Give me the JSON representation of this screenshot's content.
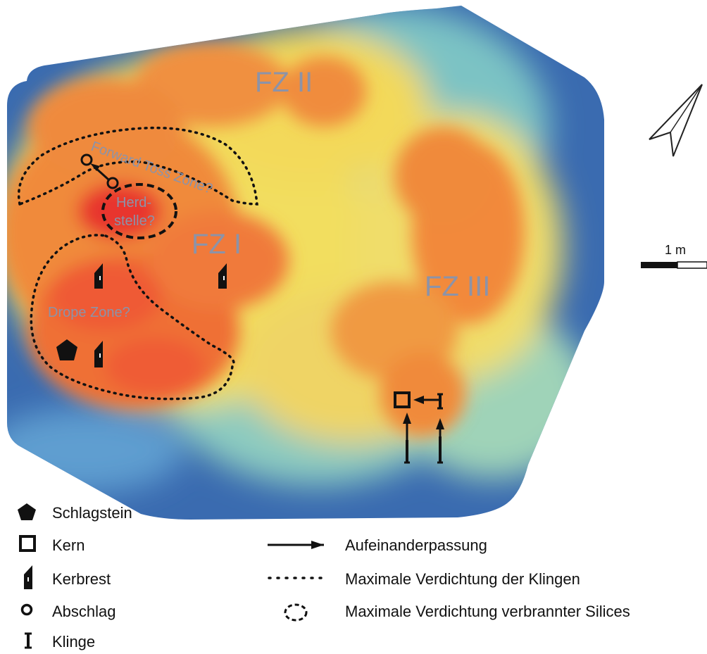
{
  "zones": {
    "fz1": "FZ I",
    "fz2": "FZ II",
    "fz3": "FZ III",
    "forward_toss": "Forward Toss Zone?",
    "herdstelle_line1": "Herd-",
    "herdstelle_line2": "stelle?",
    "drope": "Drope Zone?"
  },
  "scale_bar": {
    "label": "1 m",
    "length_m": 1
  },
  "north_arrow": {
    "icon": "north-arrow-icon"
  },
  "legend": {
    "schlagstein": "Schlagstein",
    "kern": "Kern",
    "kerbrest": "Kerbrest",
    "abschlag": "Abschlag",
    "klinge": "Klinge",
    "aufeinanderpassung": "Aufeinanderpassung",
    "verdichtung_klingen": "Maximale Verdichtung der Klingen",
    "verdichtung_silices": "Maximale Verdichtung verbrannter Silices"
  },
  "colors": {
    "low": "#2f5aa8",
    "mid_low": "#7fc6c8",
    "mid": "#f6e25a",
    "mid_high": "#f2a63a",
    "high": "#ee5a36",
    "peak": "#e8362f",
    "symbol": "#111111",
    "zone_label": "#8c93a8"
  }
}
